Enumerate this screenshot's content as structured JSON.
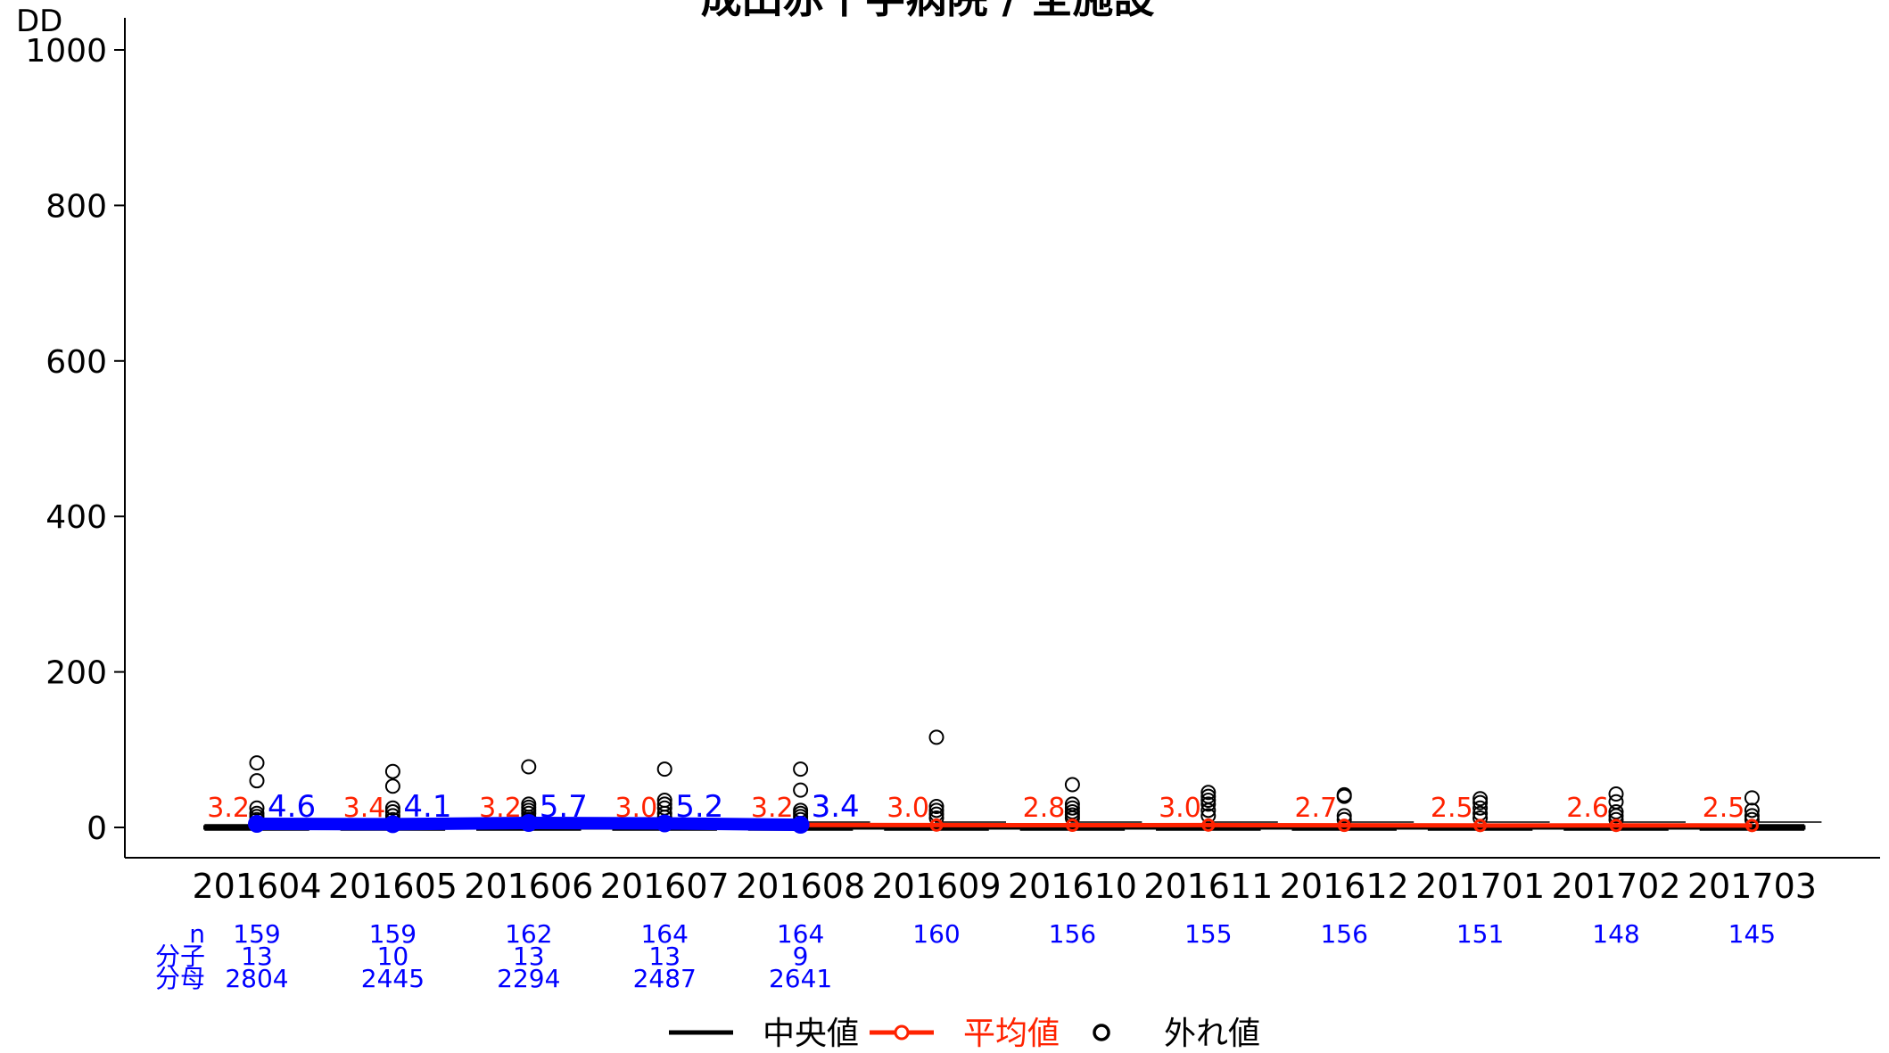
{
  "title": "成田赤十字病院 / 全施設",
  "y_axis_unit_label": "DD",
  "legend": {
    "median_label": "中央値",
    "mean_label": "平均値",
    "outlier_label": "外れ値"
  },
  "table_row_labels": {
    "n": "n",
    "numerator": "分子",
    "denominator": "分母"
  },
  "colors": {
    "hospital": "#0000ff",
    "mean": "#ff2200",
    "median": "#000000",
    "table_text": "#0000ff",
    "axis": "#000000"
  },
  "chart_data": {
    "type": "box",
    "categories": [
      "201604",
      "201605",
      "201606",
      "201607",
      "201608",
      "201609",
      "201610",
      "201611",
      "201612",
      "201701",
      "201702",
      "201703"
    ],
    "ylim": [
      0,
      1000
    ],
    "yticks": [
      0,
      200,
      400,
      600,
      800,
      1000
    ],
    "all_facility_mean": [
      3.2,
      3.4,
      3.2,
      3.0,
      3.2,
      3.0,
      2.8,
      3.0,
      2.7,
      2.5,
      2.6,
      2.5
    ],
    "all_facility_median": [
      0,
      0,
      0,
      0,
      0,
      0,
      0,
      0,
      0,
      0,
      0,
      0
    ],
    "hospital_values": [
      4.6,
      4.1,
      5.7,
      5.2,
      3.4
    ],
    "outliers": [
      [
        83,
        60,
        25,
        18,
        14,
        10
      ],
      [
        72,
        53,
        25,
        20,
        15,
        10
      ],
      [
        78,
        30,
        26,
        22,
        18,
        13,
        10
      ],
      [
        75,
        35,
        30,
        25,
        18,
        13
      ],
      [
        75,
        48,
        22,
        18,
        14,
        10
      ],
      [
        116,
        27,
        22,
        17,
        12
      ],
      [
        55,
        30,
        25,
        20,
        16,
        12
      ],
      [
        45,
        40,
        35,
        30,
        22,
        15
      ],
      [
        42,
        40,
        15,
        10
      ],
      [
        37,
        32,
        25,
        18,
        12
      ],
      [
        43,
        33,
        20,
        15,
        10
      ],
      [
        38,
        22,
        15,
        10
      ]
    ],
    "table": {
      "n": [
        "159",
        "159",
        "162",
        "164",
        "164",
        "160",
        "156",
        "155",
        "156",
        "151",
        "148",
        "145"
      ],
      "numerator": [
        "13",
        "10",
        "13",
        "13",
        "9",
        "",
        "",
        "",
        "",
        "",
        "",
        ""
      ],
      "denominator": [
        "2804",
        "2445",
        "2294",
        "2487",
        "2641",
        "",
        "",
        "",
        "",
        "",
        "",
        ""
      ]
    }
  }
}
